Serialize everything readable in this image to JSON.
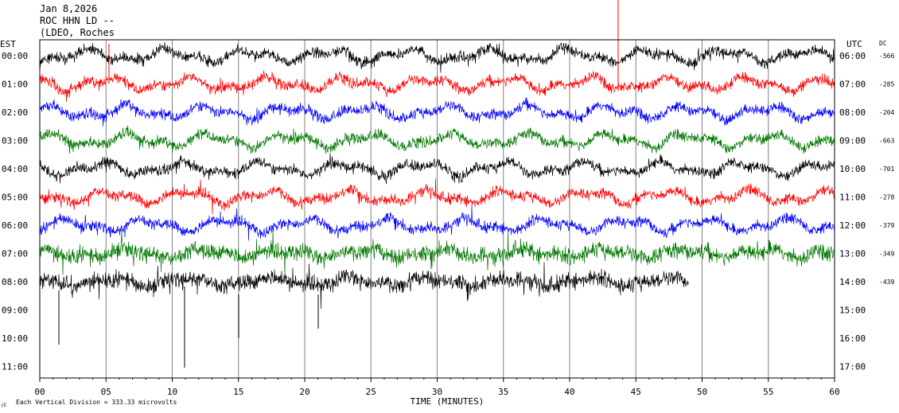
{
  "header": {
    "line1": "Jan 8,2026",
    "line2": "ROC HHN LD --",
    "line3": "(LDEO, Roches"
  },
  "left_axis_title": "EST",
  "right_axis_title": "UTC",
  "dc_title": "DC",
  "footer": {
    "xlabel": "TIME (MINUTES)",
    "scale_note": "Each Vertical Division =  333.33 microvolts",
    "corner_mark": "√Ɛ"
  },
  "chart_data": {
    "type": "line",
    "x_unit": "minutes",
    "xlim": [
      0,
      60
    ],
    "x_ticks": [
      "00",
      "05",
      "10",
      "15",
      "20",
      "25",
      "30",
      "35",
      "40",
      "45",
      "50",
      "55",
      "60"
    ],
    "grid": "vertical lines every 5 minutes",
    "rows_est": [
      "00:00",
      "01:00",
      "02:00",
      "03:00",
      "04:00",
      "05:00",
      "06:00",
      "07:00",
      "08:00",
      "09:00",
      "10:00",
      "11:00"
    ],
    "rows_utc": [
      "06:00",
      "07:00",
      "08:00",
      "09:00",
      "10:00",
      "11:00",
      "12:00",
      "13:00",
      "14:00",
      "15:00",
      "16:00",
      "17:00"
    ],
    "traces": [
      {
        "row": 0,
        "color": "#000000",
        "dc": "-566",
        "end_minute": 60,
        "amplitude": "moderate"
      },
      {
        "row": 1,
        "color": "#ff0000",
        "dc": "-285",
        "end_minute": 60,
        "amplitude": "moderate"
      },
      {
        "row": 2,
        "color": "#0000ff",
        "dc": "-204",
        "end_minute": 60,
        "amplitude": "moderate"
      },
      {
        "row": 3,
        "color": "#007700",
        "dc": "-663",
        "end_minute": 60,
        "amplitude": "moderate"
      },
      {
        "row": 4,
        "color": "#000000",
        "dc": "-701",
        "end_minute": 60,
        "amplitude": "moderate"
      },
      {
        "row": 5,
        "color": "#ff0000",
        "dc": "-278",
        "end_minute": 60,
        "amplitude": "moderate"
      },
      {
        "row": 6,
        "color": "#0000ff",
        "dc": "-379",
        "end_minute": 60,
        "amplitude": "moderate"
      },
      {
        "row": 7,
        "color": "#007700",
        "dc": "-349",
        "end_minute": 60,
        "amplitude": "high"
      },
      {
        "row": 8,
        "color": "#000000",
        "dc": "-439",
        "end_minute": 49,
        "amplitude": "high"
      }
    ]
  }
}
